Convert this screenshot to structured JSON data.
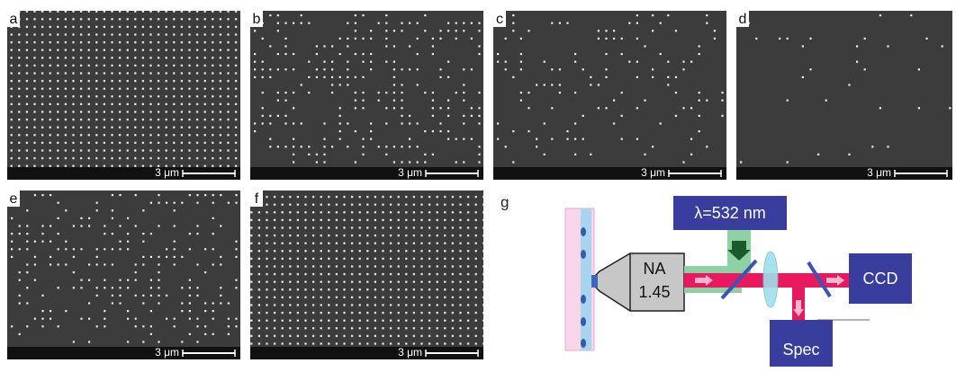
{
  "panels": [
    {
      "label": "a",
      "scale_bar": "3 μm"
    },
    {
      "label": "b",
      "scale_bar": "3 μm"
    },
    {
      "label": "c",
      "scale_bar": "3 μm"
    },
    {
      "label": "d",
      "scale_bar": "3 μm"
    },
    {
      "label": "e",
      "scale_bar": "3 μm"
    },
    {
      "label": "f",
      "scale_bar": "3 μm"
    }
  ],
  "setup": {
    "label": "g",
    "laser": "λ=532 nm",
    "objective_line1": "NA",
    "objective_line2": "1.45",
    "camera": "CCD",
    "spectrometer": "Spec"
  }
}
